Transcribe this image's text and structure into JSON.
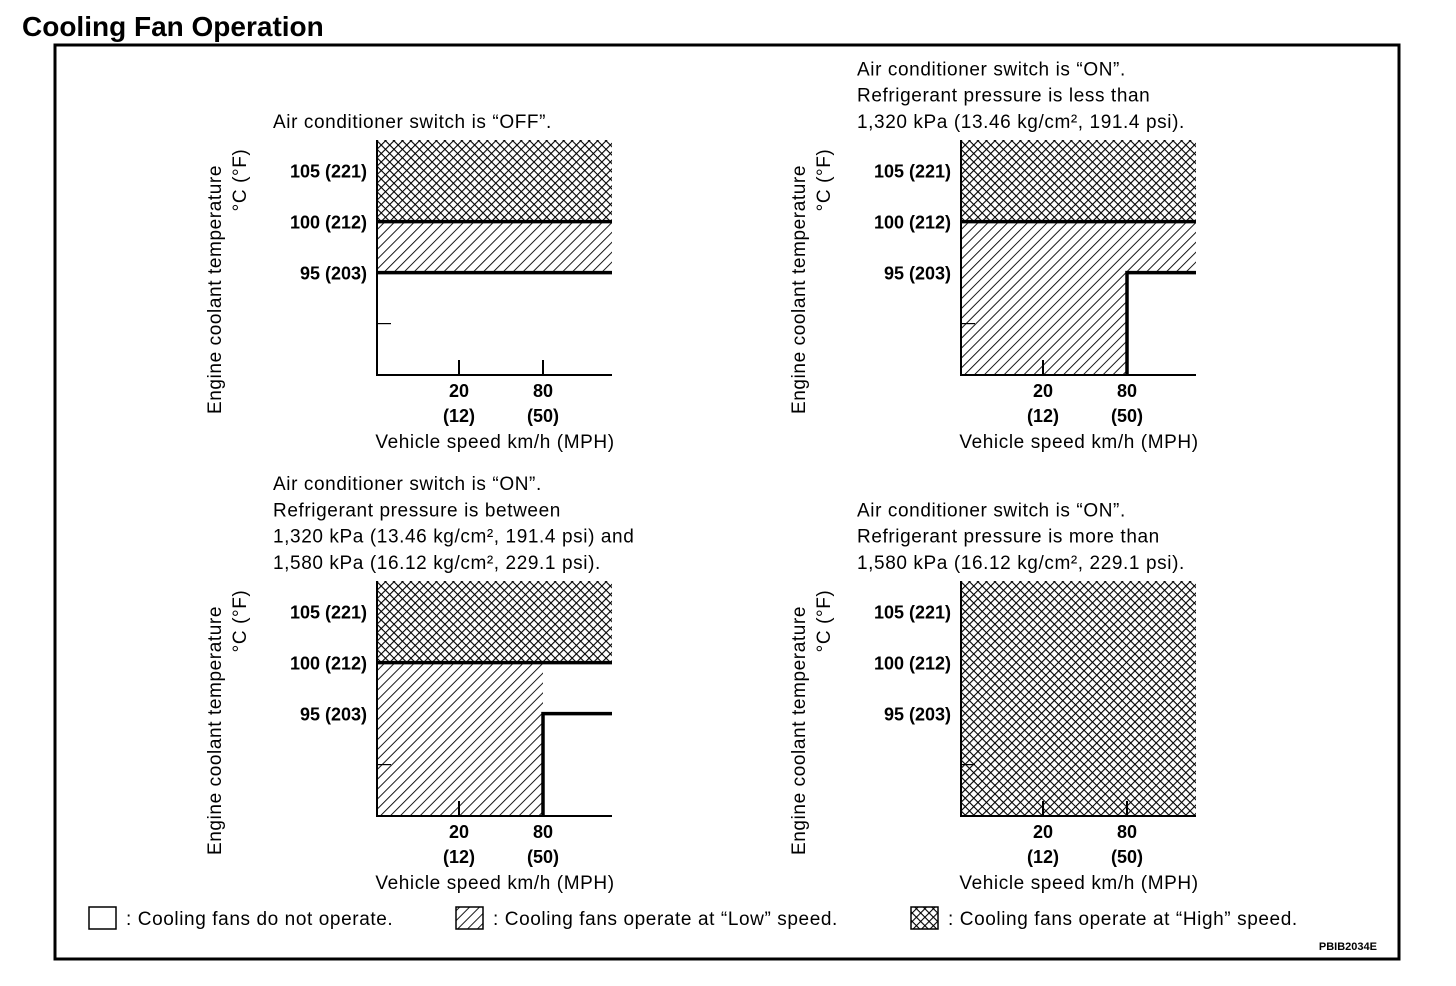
{
  "title": "Cooling Fan Operation",
  "figure_code": "PBIB2034E",
  "axes": {
    "y_label": "Engine coolant temperature",
    "y_unit": "°C (°F)",
    "x_label": "Vehicle speed km/h (MPH)",
    "y_ticks": [
      {
        "value": 105,
        "label": "105 (221)"
      },
      {
        "value": 100,
        "label": "100 (212)"
      },
      {
        "value": 95,
        "label": "95 (203)"
      }
    ],
    "x_ticks": [
      {
        "value": 20,
        "label": "20",
        "sub": "(12)"
      },
      {
        "value": 80,
        "label": "80",
        "sub": "(50)"
      }
    ]
  },
  "legend": [
    {
      "mode": "off",
      "label": ": Cooling fans do not operate."
    },
    {
      "mode": "low",
      "label": ": Cooling fans operate at “Low” speed."
    },
    {
      "mode": "high",
      "label": ": Cooling fans operate at “High” speed."
    }
  ],
  "charts": [
    {
      "note": [
        "Air conditioner switch is “OFF”."
      ],
      "regions": [
        {
          "mode": "high",
          "t": [
            100,
            108
          ],
          "v": [
            0,
            120
          ]
        },
        {
          "mode": "low",
          "t": [
            95,
            100
          ],
          "v": [
            0,
            120
          ]
        }
      ],
      "boundaries": [
        [
          [
            0,
            100
          ],
          [
            120,
            100
          ]
        ],
        [
          [
            0,
            95
          ],
          [
            120,
            95
          ]
        ]
      ]
    },
    {
      "note": [
        "Air conditioner switch is “ON”.",
        "Refrigerant pressure is less than",
        "1,320 kPa (13.46 kg/cm², 191.4 psi)."
      ],
      "regions": [
        {
          "mode": "high",
          "t": [
            100,
            108
          ],
          "v": [
            0,
            120
          ]
        },
        {
          "mode": "low",
          "t": [
            85,
            100
          ],
          "v": [
            0,
            80
          ]
        },
        {
          "mode": "low",
          "t": [
            95,
            100
          ],
          "v": [
            80,
            120
          ]
        }
      ],
      "boundaries": [
        [
          [
            0,
            100
          ],
          [
            120,
            100
          ]
        ],
        [
          [
            120,
            95
          ],
          [
            80,
            95
          ],
          [
            80,
            85
          ]
        ]
      ]
    },
    {
      "note": [
        "Air conditioner switch is “ON”.",
        "Refrigerant pressure is between",
        "1,320 kPa (13.46 kg/cm², 191.4 psi) and",
        "1,580 kPa (16.12 kg/cm², 229.1 psi)."
      ],
      "regions": [
        {
          "mode": "high",
          "t": [
            100,
            108
          ],
          "v": [
            0,
            120
          ]
        },
        {
          "mode": "low",
          "t": [
            85,
            100
          ],
          "v": [
            0,
            80
          ]
        }
      ],
      "boundaries": [
        [
          [
            0,
            100
          ],
          [
            120,
            100
          ]
        ],
        [
          [
            120,
            95
          ],
          [
            80,
            95
          ],
          [
            80,
            85
          ]
        ]
      ]
    },
    {
      "note": [
        "Air conditioner switch is “ON”.",
        "Refrigerant pressure is more than",
        "1,580 kPa (16.12 kg/cm², 229.1 psi)."
      ],
      "regions": [
        {
          "mode": "high",
          "t": [
            85,
            108
          ],
          "v": [
            0,
            120
          ]
        }
      ],
      "boundaries": []
    }
  ]
}
